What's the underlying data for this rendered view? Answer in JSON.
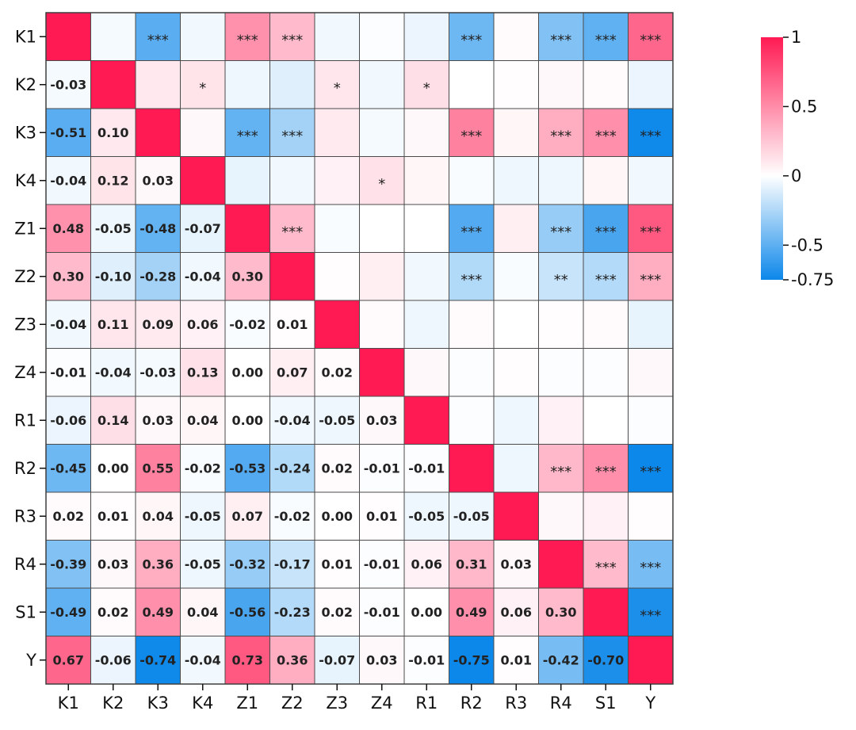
{
  "chart_data": {
    "type": "heatmap",
    "title": "",
    "xlabel": "",
    "ylabel": "",
    "labels": [
      "K1",
      "K2",
      "K3",
      "K4",
      "Z1",
      "Z2",
      "Z3",
      "Z4",
      "R1",
      "R2",
      "R3",
      "R4",
      "S1",
      "Y"
    ],
    "matrix": [
      [
        1.0,
        -0.03,
        -0.51,
        -0.04,
        0.48,
        0.3,
        -0.04,
        -0.01,
        -0.06,
        -0.45,
        0.02,
        -0.39,
        -0.49,
        0.67
      ],
      [
        -0.03,
        1.0,
        0.1,
        0.12,
        -0.05,
        -0.1,
        0.11,
        -0.04,
        0.14,
        0.0,
        0.01,
        0.03,
        0.02,
        -0.06
      ],
      [
        -0.51,
        0.1,
        1.0,
        0.03,
        -0.48,
        -0.28,
        0.09,
        -0.03,
        0.03,
        0.55,
        0.04,
        0.36,
        0.49,
        -0.74
      ],
      [
        -0.04,
        0.12,
        0.03,
        1.0,
        -0.07,
        -0.04,
        0.06,
        0.13,
        0.04,
        -0.02,
        -0.05,
        -0.05,
        0.04,
        -0.04
      ],
      [
        0.48,
        -0.05,
        -0.48,
        -0.07,
        1.0,
        0.3,
        -0.02,
        0.0,
        0.0,
        -0.53,
        0.07,
        -0.32,
        -0.56,
        0.73
      ],
      [
        0.3,
        -0.1,
        -0.28,
        -0.04,
        0.3,
        1.0,
        0.01,
        0.07,
        -0.04,
        -0.24,
        -0.02,
        -0.17,
        -0.23,
        0.36
      ],
      [
        -0.04,
        0.11,
        0.09,
        0.06,
        -0.02,
        0.01,
        1.0,
        0.02,
        -0.05,
        0.02,
        0.0,
        0.01,
        0.02,
        -0.07
      ],
      [
        -0.01,
        -0.04,
        -0.03,
        0.13,
        0.0,
        0.07,
        0.02,
        1.0,
        0.03,
        -0.01,
        0.01,
        -0.01,
        -0.01,
        0.03
      ],
      [
        -0.06,
        0.14,
        0.03,
        0.04,
        0.0,
        -0.04,
        -0.05,
        0.03,
        1.0,
        -0.01,
        -0.05,
        0.06,
        0.0,
        -0.01
      ],
      [
        -0.45,
        0.0,
        0.55,
        -0.02,
        -0.53,
        -0.24,
        0.02,
        -0.01,
        -0.01,
        1.0,
        -0.05,
        0.31,
        0.49,
        -0.75
      ],
      [
        0.02,
        0.01,
        0.04,
        -0.05,
        0.07,
        -0.02,
        0.0,
        0.01,
        -0.05,
        -0.05,
        1.0,
        0.03,
        0.06,
        0.01
      ],
      [
        -0.39,
        0.03,
        0.36,
        -0.05,
        -0.32,
        -0.17,
        0.01,
        -0.01,
        0.06,
        0.31,
        0.03,
        1.0,
        0.3,
        -0.42
      ],
      [
        -0.49,
        0.02,
        0.49,
        0.04,
        -0.56,
        -0.23,
        0.02,
        -0.01,
        0.0,
        0.49,
        0.06,
        0.3,
        1.0,
        -0.7
      ],
      [
        0.67,
        -0.06,
        -0.74,
        -0.04,
        0.73,
        0.36,
        -0.07,
        0.03,
        -0.01,
        -0.75,
        0.01,
        -0.42,
        -0.7,
        1.0
      ]
    ],
    "lower_triangle_values": [
      [
        "-0.03"
      ],
      [
        "-0.51",
        "0.10"
      ],
      [
        "-0.04",
        "0.12",
        "0.03"
      ],
      [
        "0.48",
        "-0.05",
        "-0.48",
        "-0.07"
      ],
      [
        "0.30",
        "-0.10",
        "-0.28",
        "-0.04",
        "0.30"
      ],
      [
        "-0.04",
        "0.11",
        "0.09",
        "0.06",
        "-0.02",
        "0.01"
      ],
      [
        "-0.01",
        "-0.04",
        "-0.03",
        "0.13",
        "0.00",
        "0.07",
        "0.02"
      ],
      [
        "-0.06",
        "0.14",
        "0.03",
        "0.04",
        "0.00",
        "-0.04",
        "-0.05",
        "0.03"
      ],
      [
        "-0.45",
        "0.00",
        "0.55",
        "-0.02",
        "-0.53",
        "-0.24",
        "0.02",
        "-0.01",
        "-0.01"
      ],
      [
        "0.02",
        "0.01",
        "0.04",
        "-0.05",
        "0.07",
        "-0.02",
        "0.00",
        "0.01",
        "-0.05",
        "-0.05"
      ],
      [
        "-0.39",
        "0.03",
        "0.36",
        "-0.05",
        "-0.32",
        "-0.17",
        "0.01",
        "-0.01",
        "0.06",
        "0.31",
        "0.03"
      ],
      [
        "-0.49",
        "0.02",
        "0.49",
        "0.04",
        "-0.56",
        "-0.23",
        "0.02",
        "-0.01",
        "0.00",
        "0.49",
        "0.06",
        "0.30"
      ],
      [
        "0.67",
        "-0.06",
        "-0.74",
        "-0.04",
        "0.73",
        "0.36",
        "-0.07",
        "0.03",
        "-0.01",
        "-0.75",
        "0.01",
        "-0.42",
        "-0.70"
      ]
    ],
    "upper_triangle_significance": [
      [
        "",
        "***",
        "",
        "***",
        "***",
        "",
        "",
        "",
        "***",
        "",
        "***",
        "***",
        "***"
      ],
      [
        "",
        "*",
        "",
        "",
        "*",
        "",
        "*",
        "",
        "",
        "",
        "",
        ""
      ],
      [
        "",
        "***",
        "***",
        "",
        "",
        "",
        "***",
        "",
        "***",
        "***",
        "***"
      ],
      [
        "",
        "",
        "",
        "*",
        "",
        "",
        "",
        "",
        "",
        ""
      ],
      [
        "***",
        "",
        "",
        "",
        "***",
        "",
        "***",
        "***",
        "***"
      ],
      [
        "",
        "",
        "",
        "***",
        "",
        "**",
        "***",
        "***"
      ],
      [
        "",
        "",
        "",
        "",
        "",
        "",
        ""
      ],
      [
        "",
        "",
        "",
        "",
        "",
        ""
      ],
      [
        "",
        "",
        "",
        "",
        ""
      ],
      [
        "",
        "***",
        "***",
        "***"
      ],
      [
        "",
        "",
        ""
      ],
      [
        "***",
        "***"
      ],
      [
        "***"
      ]
    ],
    "colorbar": {
      "min": -0.75,
      "max": 1,
      "center": 0,
      "ticks": [
        1,
        0.5,
        0,
        -0.5,
        -0.75
      ],
      "tick_labels": [
        "1",
        "0.5",
        "0",
        "-0.5",
        "-0.75"
      ],
      "colors": {
        "high": "#ff1a53",
        "center": "#ffffff",
        "low": "#0c87ea"
      }
    }
  }
}
